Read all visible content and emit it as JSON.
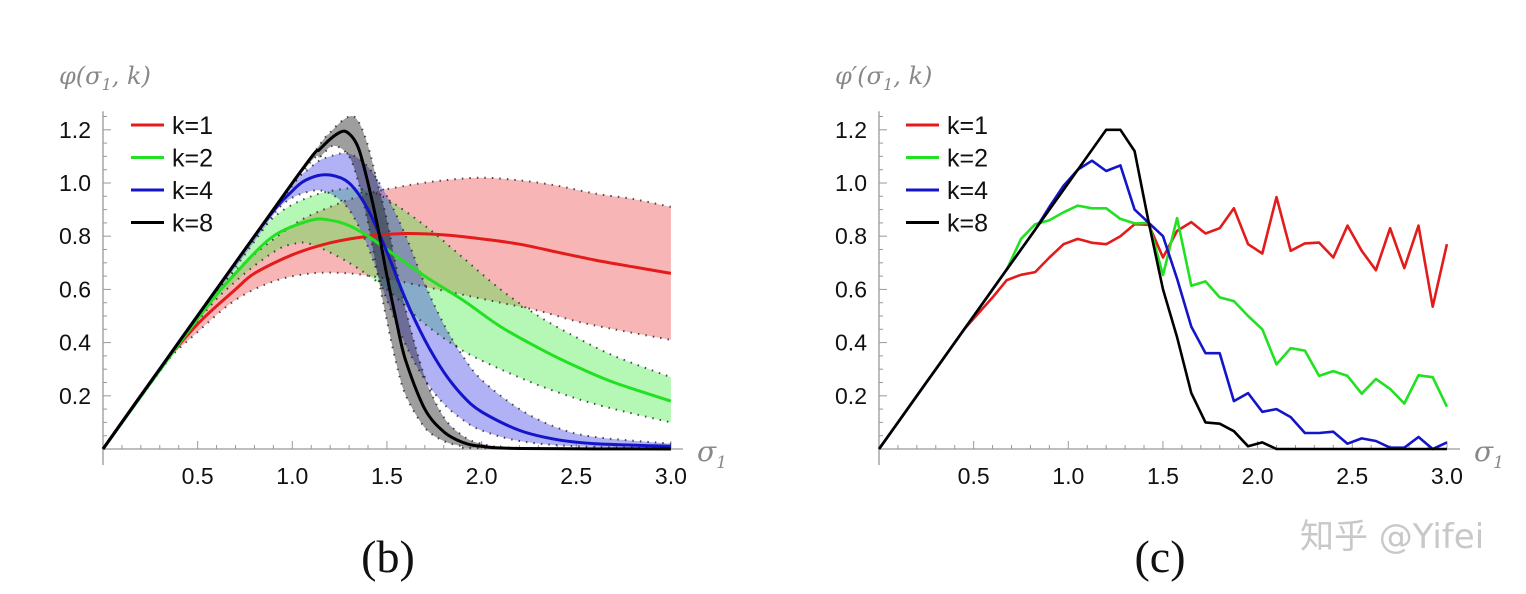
{
  "colors": {
    "k1": "#e31b1b",
    "k2": "#22e022",
    "k4": "#1414c8",
    "k8": "#000000",
    "band_k1": "rgba(240,90,90,0.45)",
    "band_k2": "rgba(70,235,70,0.40)",
    "band_k4": "rgba(70,70,230,0.42)",
    "band_k8": "rgba(0,0,0,0.38)",
    "axis": "#999999"
  },
  "watermark": "知乎 @Yifei",
  "chart_data": [
    {
      "type": "line",
      "panel_caption": "(b)",
      "ylabel": "φ(σ1, k)",
      "ylabel_parts": {
        "main": "φ(σ",
        "sub": "1",
        "rest": ", k)"
      },
      "xlabel": "σ1",
      "xlabel_parts": {
        "main": "σ",
        "sub": "1"
      },
      "xlim": [
        0,
        3.0
      ],
      "ylim": [
        0,
        1.25
      ],
      "xticks": [
        "0.5",
        "1.0",
        "1.5",
        "2.0",
        "2.5",
        "3.0"
      ],
      "xtick_values": [
        0.5,
        1.0,
        1.5,
        2.0,
        2.5,
        3.0
      ],
      "yticks": [
        "0.2",
        "0.4",
        "0.6",
        "0.8",
        "1.0",
        "1.2"
      ],
      "ytick_values": [
        0.2,
        0.4,
        0.6,
        0.8,
        1.0,
        1.2
      ],
      "legend_position": "top-left",
      "series": [
        {
          "name": "k=1",
          "color_key": "k1",
          "mean": [
            [
              0,
              0
            ],
            [
              0.3,
              0.3
            ],
            [
              0.5,
              0.47
            ],
            [
              0.7,
              0.6
            ],
            [
              0.8,
              0.66
            ],
            [
              1.0,
              0.73
            ],
            [
              1.2,
              0.775
            ],
            [
              1.4,
              0.8
            ],
            [
              1.6,
              0.81
            ],
            [
              1.8,
              0.805
            ],
            [
              2.0,
              0.79
            ],
            [
              2.2,
              0.77
            ],
            [
              2.4,
              0.74
            ],
            [
              2.6,
              0.71
            ],
            [
              2.8,
              0.685
            ],
            [
              3.0,
              0.66
            ]
          ],
          "upper": [
            [
              0,
              0
            ],
            [
              0.3,
              0.3
            ],
            [
              0.5,
              0.5
            ],
            [
              0.7,
              0.67
            ],
            [
              1.0,
              0.84
            ],
            [
              1.2,
              0.91
            ],
            [
              1.4,
              0.96
            ],
            [
              1.6,
              0.99
            ],
            [
              1.8,
              1.01
            ],
            [
              2.0,
              1.02
            ],
            [
              2.2,
              1.01
            ],
            [
              2.4,
              0.99
            ],
            [
              2.6,
              0.96
            ],
            [
              2.8,
              0.94
            ],
            [
              3.0,
              0.91
            ]
          ],
          "lower": [
            [
              0,
              0
            ],
            [
              0.3,
              0.3
            ],
            [
              0.5,
              0.44
            ],
            [
              0.7,
              0.56
            ],
            [
              0.9,
              0.63
            ],
            [
              1.1,
              0.66
            ],
            [
              1.3,
              0.66
            ],
            [
              1.5,
              0.64
            ],
            [
              1.7,
              0.61
            ],
            [
              1.9,
              0.58
            ],
            [
              2.1,
              0.55
            ],
            [
              2.3,
              0.52
            ],
            [
              2.5,
              0.48
            ],
            [
              2.7,
              0.45
            ],
            [
              3.0,
              0.41
            ]
          ]
        },
        {
          "name": "k=2",
          "color_key": "k2",
          "mean": [
            [
              0,
              0
            ],
            [
              0.5,
              0.49
            ],
            [
              0.7,
              0.66
            ],
            [
              0.9,
              0.8
            ],
            [
              1.1,
              0.86
            ],
            [
              1.2,
              0.86
            ],
            [
              1.3,
              0.84
            ],
            [
              1.4,
              0.8
            ],
            [
              1.5,
              0.75
            ],
            [
              1.7,
              0.65
            ],
            [
              1.9,
              0.56
            ],
            [
              2.1,
              0.46
            ],
            [
              2.3,
              0.38
            ],
            [
              2.5,
              0.31
            ],
            [
              2.7,
              0.25
            ],
            [
              3.0,
              0.18
            ]
          ],
          "upper": [
            [
              0,
              0
            ],
            [
              0.5,
              0.5
            ],
            [
              0.7,
              0.7
            ],
            [
              0.9,
              0.87
            ],
            [
              1.1,
              0.95
            ],
            [
              1.3,
              0.98
            ],
            [
              1.4,
              0.97
            ],
            [
              1.5,
              0.94
            ],
            [
              1.7,
              0.84
            ],
            [
              1.9,
              0.72
            ],
            [
              2.1,
              0.6
            ],
            [
              2.3,
              0.5
            ],
            [
              2.5,
              0.42
            ],
            [
              2.7,
              0.35
            ],
            [
              3.0,
              0.27
            ]
          ],
          "lower": [
            [
              0,
              0
            ],
            [
              0.5,
              0.48
            ],
            [
              0.7,
              0.63
            ],
            [
              0.9,
              0.74
            ],
            [
              1.0,
              0.77
            ],
            [
              1.1,
              0.77
            ],
            [
              1.3,
              0.7
            ],
            [
              1.5,
              0.6
            ],
            [
              1.7,
              0.47
            ],
            [
              1.9,
              0.37
            ],
            [
              2.1,
              0.3
            ],
            [
              2.3,
              0.24
            ],
            [
              2.5,
              0.19
            ],
            [
              2.7,
              0.15
            ],
            [
              3.0,
              0.1
            ]
          ]
        },
        {
          "name": "k=4",
          "color_key": "k4",
          "mean": [
            [
              0,
              0
            ],
            [
              0.8,
              0.8
            ],
            [
              1.0,
              0.97
            ],
            [
              1.1,
              1.02
            ],
            [
              1.2,
              1.03
            ],
            [
              1.3,
              1.0
            ],
            [
              1.4,
              0.9
            ],
            [
              1.5,
              0.74
            ],
            [
              1.6,
              0.56
            ],
            [
              1.7,
              0.41
            ],
            [
              1.8,
              0.29
            ],
            [
              1.9,
              0.2
            ],
            [
              2.0,
              0.14
            ],
            [
              2.2,
              0.07
            ],
            [
              2.4,
              0.035
            ],
            [
              2.6,
              0.02
            ],
            [
              3.0,
              0.01
            ]
          ],
          "upper": [
            [
              0,
              0
            ],
            [
              0.9,
              0.9
            ],
            [
              1.1,
              1.06
            ],
            [
              1.2,
              1.1
            ],
            [
              1.3,
              1.11
            ],
            [
              1.4,
              1.06
            ],
            [
              1.5,
              0.95
            ],
            [
              1.6,
              0.8
            ],
            [
              1.7,
              0.62
            ],
            [
              1.8,
              0.47
            ],
            [
              1.9,
              0.35
            ],
            [
              2.0,
              0.26
            ],
            [
              2.2,
              0.15
            ],
            [
              2.4,
              0.08
            ],
            [
              2.6,
              0.045
            ],
            [
              3.0,
              0.02
            ]
          ],
          "lower": [
            [
              0,
              0
            ],
            [
              0.8,
              0.78
            ],
            [
              0.95,
              0.92
            ],
            [
              1.1,
              0.97
            ],
            [
              1.2,
              0.96
            ],
            [
              1.3,
              0.9
            ],
            [
              1.4,
              0.76
            ],
            [
              1.5,
              0.56
            ],
            [
              1.6,
              0.39
            ],
            [
              1.7,
              0.26
            ],
            [
              1.8,
              0.17
            ],
            [
              1.9,
              0.11
            ],
            [
              2.0,
              0.07
            ],
            [
              2.2,
              0.03
            ],
            [
              2.5,
              0.01
            ],
            [
              3.0,
              0.003
            ]
          ]
        },
        {
          "name": "k=8",
          "color_key": "k8",
          "mean": [
            [
              0,
              0
            ],
            [
              1.0,
              1.0
            ],
            [
              1.15,
              1.13
            ],
            [
              1.25,
              1.19
            ],
            [
              1.3,
              1.185
            ],
            [
              1.35,
              1.13
            ],
            [
              1.4,
              1.0
            ],
            [
              1.45,
              0.84
            ],
            [
              1.5,
              0.65
            ],
            [
              1.55,
              0.48
            ],
            [
              1.6,
              0.33
            ],
            [
              1.7,
              0.15
            ],
            [
              1.8,
              0.065
            ],
            [
              1.9,
              0.025
            ],
            [
              2.0,
              0.01
            ],
            [
              2.2,
              0.002
            ],
            [
              3.0,
              0
            ]
          ],
          "upper": [
            [
              0,
              0
            ],
            [
              1.05,
              1.05
            ],
            [
              1.2,
              1.19
            ],
            [
              1.3,
              1.25
            ],
            [
              1.35,
              1.23
            ],
            [
              1.4,
              1.14
            ],
            [
              1.45,
              1.0
            ],
            [
              1.5,
              0.86
            ],
            [
              1.55,
              0.68
            ],
            [
              1.6,
              0.52
            ],
            [
              1.7,
              0.27
            ],
            [
              1.8,
              0.12
            ],
            [
              1.9,
              0.05
            ],
            [
              2.0,
              0.02
            ],
            [
              2.2,
              0.004
            ],
            [
              3.0,
              0
            ]
          ],
          "lower": [
            [
              0,
              0
            ],
            [
              1.0,
              0.99
            ],
            [
              1.15,
              1.1
            ],
            [
              1.22,
              1.14
            ],
            [
              1.3,
              1.1
            ],
            [
              1.35,
              1.0
            ],
            [
              1.4,
              0.85
            ],
            [
              1.45,
              0.66
            ],
            [
              1.5,
              0.48
            ],
            [
              1.55,
              0.32
            ],
            [
              1.6,
              0.2
            ],
            [
              1.7,
              0.08
            ],
            [
              1.8,
              0.03
            ],
            [
              1.9,
              0.01
            ],
            [
              2.0,
              0.003
            ],
            [
              3.0,
              0
            ]
          ]
        }
      ]
    },
    {
      "type": "line",
      "panel_caption": "(c)",
      "ylabel": "φ′(σ1, k)",
      "ylabel_parts": {
        "main": "φ′(σ",
        "sub": "1",
        "rest": ", k)"
      },
      "xlabel": "σ1",
      "xlabel_parts": {
        "main": "σ",
        "sub": "1"
      },
      "xlim": [
        0,
        3.0
      ],
      "ylim": [
        0,
        1.25
      ],
      "xticks": [
        "0.5",
        "1.0",
        "1.5",
        "2.0",
        "2.5",
        "3.0"
      ],
      "xtick_values": [
        0.5,
        1.0,
        1.5,
        2.0,
        2.5,
        3.0
      ],
      "yticks": [
        "0.2",
        "0.4",
        "0.6",
        "0.8",
        "1.0",
        "1.2"
      ],
      "ytick_values": [
        0.2,
        0.4,
        0.6,
        0.8,
        1.0,
        1.2
      ],
      "x_step": 0.075,
      "legend_position": "top-left",
      "series": [
        {
          "name": "k=1",
          "color_key": "k1",
          "values": [
            0,
            0.075,
            0.15,
            0.225,
            0.3,
            0.375,
            0.45,
            0.51,
            0.57,
            0.635,
            0.655,
            0.665,
            0.72,
            0.77,
            0.79,
            0.775,
            0.77,
            0.8,
            0.845,
            0.843,
            0.72,
            0.82,
            0.853,
            0.81,
            0.83,
            0.905,
            0.77,
            0.735,
            0.947,
            0.745,
            0.773,
            0.776,
            0.72,
            0.84,
            0.745,
            0.672,
            0.83,
            0.68,
            0.84,
            0.535,
            0.77
          ]
        },
        {
          "name": "k=2",
          "color_key": "k2",
          "values": [
            0,
            0.075,
            0.15,
            0.225,
            0.3,
            0.375,
            0.45,
            0.525,
            0.6,
            0.675,
            0.79,
            0.845,
            0.86,
            0.89,
            0.915,
            0.905,
            0.905,
            0.865,
            0.848,
            0.85,
            0.654,
            0.868,
            0.614,
            0.63,
            0.57,
            0.556,
            0.5,
            0.45,
            0.318,
            0.379,
            0.37,
            0.275,
            0.293,
            0.275,
            0.208,
            0.263,
            0.226,
            0.171,
            0.277,
            0.27,
            0.159
          ]
        },
        {
          "name": "k=4",
          "color_key": "k4",
          "values": [
            0,
            0.075,
            0.15,
            0.225,
            0.3,
            0.375,
            0.45,
            0.525,
            0.6,
            0.675,
            0.75,
            0.825,
            0.91,
            0.99,
            1.05,
            1.084,
            1.045,
            1.066,
            0.9,
            0.85,
            0.8,
            0.64,
            0.46,
            0.36,
            0.36,
            0.18,
            0.21,
            0.14,
            0.15,
            0.12,
            0.06,
            0.06,
            0.065,
            0.02,
            0.04,
            0.03,
            0.005,
            0.005,
            0.045,
            0.0,
            0.025
          ]
        },
        {
          "name": "k=8",
          "color_key": "k8",
          "values": [
            0,
            0.075,
            0.15,
            0.225,
            0.3,
            0.375,
            0.45,
            0.525,
            0.6,
            0.675,
            0.75,
            0.825,
            0.9,
            0.975,
            1.05,
            1.125,
            1.2,
            1.2,
            1.12,
            0.85,
            0.6,
            0.42,
            0.21,
            0.1,
            0.095,
            0.067,
            0.01,
            0.025,
            0,
            0,
            0,
            0,
            0,
            0,
            0,
            0,
            0,
            0,
            0,
            0,
            0
          ]
        }
      ]
    }
  ]
}
